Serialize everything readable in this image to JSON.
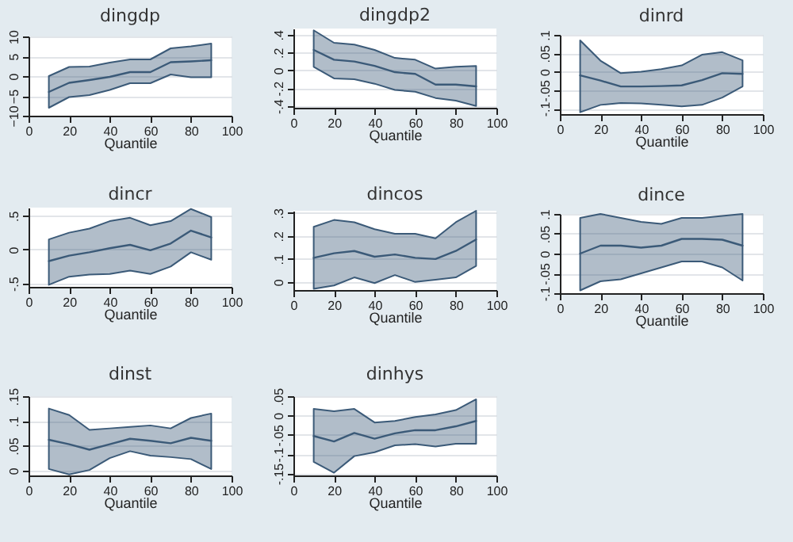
{
  "chart_data": [
    {
      "type": "line",
      "title": "dingdp",
      "xlabel": "Quantile",
      "x": [
        10,
        20,
        30,
        40,
        50,
        60,
        70,
        80,
        90
      ],
      "xlim": [
        0,
        100
      ],
      "xticks": [
        0,
        20,
        40,
        60,
        80,
        100
      ],
      "ylim": [
        -10,
        10
      ],
      "yticks": [
        -10,
        -5,
        0,
        5,
        10
      ],
      "grid": "y",
      "series": [
        {
          "color": "#3b5a78",
          "values": [
            -4,
            -1.7,
            -1,
            -0.2,
            1,
            1,
            3.5,
            3.7,
            4
          ],
          "lower": [
            -8,
            -5.3,
            -4.8,
            -3.5,
            -1.8,
            -1.8,
            0.4,
            -0.3,
            -0.3
          ],
          "upper": [
            0,
            2.3,
            2.4,
            3.4,
            4.2,
            4.2,
            7,
            7.5,
            8.2
          ]
        }
      ]
    },
    {
      "type": "line",
      "title": "dingdp2",
      "xlabel": "Quantile",
      "x": [
        10,
        20,
        30,
        40,
        50,
        60,
        70,
        80,
        90
      ],
      "xlim": [
        0,
        100
      ],
      "xticks": [
        0,
        20,
        40,
        60,
        80,
        100
      ],
      "ylim": [
        -0.42,
        0.47
      ],
      "yticks": [
        {
          "value": -0.4,
          "label": "-.4"
        },
        {
          "value": -0.2,
          "label": "-.2"
        },
        0,
        {
          "value": 0.2,
          "label": ".2"
        },
        {
          "value": 0.4,
          "label": ".4"
        }
      ],
      "grid": "y",
      "series": [
        {
          "color": "#3b5a78",
          "values": [
            0.23,
            0.12,
            0.1,
            0.05,
            -0.02,
            -0.04,
            -0.16,
            -0.16,
            -0.18
          ],
          "lower": [
            0.04,
            -0.09,
            -0.1,
            -0.15,
            -0.22,
            -0.24,
            -0.31,
            -0.34,
            -0.4
          ],
          "upper": [
            0.45,
            0.31,
            0.29,
            0.23,
            0.14,
            0.12,
            0.02,
            0.04,
            0.05
          ]
        }
      ]
    },
    {
      "type": "line",
      "title": "dinrd",
      "xlabel": "Quantile",
      "x": [
        10,
        20,
        30,
        40,
        50,
        60,
        70,
        80,
        90
      ],
      "xlim": [
        0,
        100
      ],
      "xticks": [
        0,
        20,
        40,
        60,
        80,
        100
      ],
      "ylim": [
        -0.115,
        0.1
      ],
      "yticks": [
        {
          "value": -0.1,
          "label": "-.1"
        },
        {
          "value": -0.05,
          "label": "-.05"
        },
        0,
        {
          "value": 0.05,
          "label": ".05"
        },
        {
          "value": 0.1,
          "label": ".1"
        }
      ],
      "grid": "y",
      "series": [
        {
          "color": "#3b5a78",
          "values": [
            -0.01,
            -0.024,
            -0.04,
            -0.04,
            -0.039,
            -0.037,
            -0.023,
            -0.004,
            -0.006
          ],
          "lower": [
            -0.11,
            -0.09,
            -0.085,
            -0.086,
            -0.09,
            -0.094,
            -0.09,
            -0.07,
            -0.04
          ],
          "upper": [
            0.085,
            0.03,
            -0.004,
            0,
            0.007,
            0.017,
            0.046,
            0.053,
            0.031
          ]
        }
      ]
    },
    {
      "type": "line",
      "title": "dincr",
      "xlabel": "Quantile",
      "x": [
        10,
        20,
        30,
        40,
        50,
        60,
        70,
        80,
        90
      ],
      "xlim": [
        0,
        100
      ],
      "xticks": [
        0,
        20,
        40,
        60,
        80,
        100
      ],
      "ylim": [
        -0.55,
        0.62
      ],
      "yticks": [
        {
          "value": -0.5,
          "label": "-.5"
        },
        0,
        {
          "value": 0.5,
          "label": ".5"
        }
      ],
      "grid": "y",
      "series": [
        {
          "color": "#3b5a78",
          "values": [
            -0.17,
            -0.09,
            -0.04,
            0.02,
            0.07,
            -0.01,
            0.09,
            0.28,
            0.18
          ],
          "lower": [
            -0.52,
            -0.4,
            -0.37,
            -0.36,
            -0.31,
            -0.36,
            -0.25,
            -0.04,
            -0.15
          ],
          "upper": [
            0.15,
            0.25,
            0.31,
            0.42,
            0.47,
            0.36,
            0.42,
            0.6,
            0.48
          ]
        }
      ]
    },
    {
      "type": "line",
      "title": "dincos",
      "xlabel": "Quantile",
      "x": [
        10,
        20,
        30,
        40,
        50,
        60,
        70,
        80,
        90
      ],
      "xlim": [
        0,
        100
      ],
      "xticks": [
        0,
        20,
        40,
        60,
        80,
        100
      ],
      "ylim": [
        -0.035,
        0.31
      ],
      "yticks": [
        0,
        {
          "value": 0.1,
          "label": ".1"
        },
        {
          "value": 0.2,
          "label": ".2"
        },
        {
          "value": 0.3,
          "label": ".3"
        }
      ],
      "grid": "y",
      "series": [
        {
          "color": "#3b5a78",
          "values": [
            0.105,
            0.125,
            0.135,
            0.11,
            0.12,
            0.105,
            0.1,
            0.135,
            0.185
          ],
          "lower": [
            -0.03,
            -0.015,
            0.02,
            -0.005,
            0.03,
            0,
            0.01,
            0.02,
            0.07
          ],
          "upper": [
            0.24,
            0.27,
            0.26,
            0.23,
            0.21,
            0.21,
            0.19,
            0.26,
            0.31
          ]
        }
      ]
    },
    {
      "type": "line",
      "title": "dince",
      "xlabel": "Quantile",
      "x": [
        10,
        20,
        30,
        40,
        50,
        60,
        70,
        80,
        90
      ],
      "xlim": [
        0,
        100
      ],
      "xticks": [
        0,
        20,
        40,
        60,
        80,
        100
      ],
      "ylim": [
        -0.1,
        0.1
      ],
      "yticks": [
        {
          "value": -0.1,
          "label": "-.1"
        },
        {
          "value": -0.05,
          "label": "-.05"
        },
        0,
        {
          "value": 0.05,
          "label": ".05"
        },
        {
          "value": 0.1,
          "label": ".1"
        }
      ],
      "grid": "y",
      "series": [
        {
          "color": "#3b5a78",
          "values": [
            0,
            0.02,
            0.02,
            0.015,
            0.02,
            0.037,
            0.037,
            0.035,
            0.02
          ],
          "lower": [
            -0.093,
            -0.07,
            -0.065,
            -0.05,
            -0.035,
            -0.02,
            -0.02,
            -0.035,
            -0.068
          ],
          "upper": [
            0.09,
            0.1,
            0.09,
            0.08,
            0.075,
            0.09,
            0.09,
            0.095,
            0.1
          ]
        }
      ]
    },
    {
      "type": "line",
      "title": "dinst",
      "xlabel": "Quantile",
      "x": [
        10,
        20,
        30,
        40,
        50,
        60,
        70,
        80,
        90
      ],
      "xlim": [
        0,
        100
      ],
      "xticks": [
        0,
        20,
        40,
        60,
        80,
        100
      ],
      "ylim": [
        -0.01,
        0.15
      ],
      "yticks": [
        0,
        {
          "value": 0.05,
          "label": ".05"
        },
        {
          "value": 0.1,
          "label": ".1"
        },
        {
          "value": 0.15,
          "label": ".15"
        }
      ],
      "grid": "y",
      "series": [
        {
          "color": "#3b5a78",
          "values": [
            0.062,
            0.053,
            0.042,
            0.053,
            0.064,
            0.06,
            0.055,
            0.066,
            0.06
          ],
          "lower": [
            0.003,
            -0.008,
            0.001,
            0.025,
            0.039,
            0.03,
            0.027,
            0.023,
            0.003
          ],
          "upper": [
            0.125,
            0.112,
            0.082,
            0.085,
            0.088,
            0.091,
            0.085,
            0.106,
            0.115
          ]
        }
      ]
    },
    {
      "type": "line",
      "title": "dinhys",
      "xlabel": "Quantile",
      "x": [
        10,
        20,
        30,
        40,
        50,
        60,
        70,
        80,
        90
      ],
      "xlim": [
        0,
        100
      ],
      "xticks": [
        0,
        20,
        40,
        60,
        80,
        100
      ],
      "ylim": [
        -0.155,
        0.05
      ],
      "yticks": [
        {
          "value": -0.15,
          "label": "-.15"
        },
        {
          "value": -0.1,
          "label": "-.1"
        },
        {
          "value": -0.05,
          "label": "-.05"
        },
        0,
        {
          "value": 0.05,
          "label": ".05"
        }
      ],
      "grid": "y",
      "series": [
        {
          "color": "#3b5a78",
          "values": [
            -0.053,
            -0.067,
            -0.045,
            -0.06,
            -0.046,
            -0.038,
            -0.038,
            -0.028,
            -0.014
          ],
          "lower": [
            -0.12,
            -0.148,
            -0.105,
            -0.095,
            -0.077,
            -0.074,
            -0.08,
            -0.073,
            -0.073
          ],
          "upper": [
            0.017,
            0.011,
            0.017,
            -0.018,
            -0.014,
            -0.004,
            0.003,
            0.014,
            0.042
          ]
        }
      ]
    }
  ]
}
